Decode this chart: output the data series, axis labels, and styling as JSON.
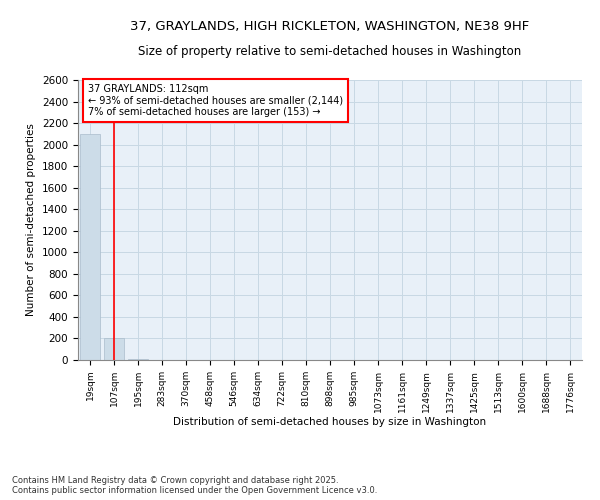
{
  "title": "37, GRAYLANDS, HIGH RICKLETON, WASHINGTON, NE38 9HF",
  "subtitle": "Size of property relative to semi-detached houses in Washington",
  "xlabel": "Distribution of semi-detached houses by size in Washington",
  "ylabel": "Number of semi-detached properties",
  "footnote1": "Contains HM Land Registry data © Crown copyright and database right 2025.",
  "footnote2": "Contains public sector information licensed under the Open Government Licence v3.0.",
  "categories": [
    "19sqm",
    "107sqm",
    "195sqm",
    "283sqm",
    "370sqm",
    "458sqm",
    "546sqm",
    "634sqm",
    "722sqm",
    "810sqm",
    "898sqm",
    "985sqm",
    "1073sqm",
    "1161sqm",
    "1249sqm",
    "1337sqm",
    "1425sqm",
    "1513sqm",
    "1600sqm",
    "1688sqm",
    "1776sqm"
  ],
  "values": [
    2100,
    200,
    10,
    2,
    1,
    0,
    0,
    0,
    0,
    0,
    0,
    0,
    0,
    0,
    0,
    0,
    0,
    0,
    0,
    0,
    0
  ],
  "bar_color": "#ccdce8",
  "bar_edge_color": "#aabccc",
  "ylim": [
    0,
    2600
  ],
  "yticks": [
    0,
    200,
    400,
    600,
    800,
    1000,
    1200,
    1400,
    1600,
    1800,
    2000,
    2200,
    2400,
    2600
  ],
  "red_line_x": 1.0,
  "annotation_title": "37 GRAYLANDS: 112sqm",
  "annotation_line1": "← 93% of semi-detached houses are smaller (2,144)",
  "annotation_line2": "7% of semi-detached houses are larger (153) →",
  "grid_color": "#c8d8e4",
  "background_color": "#e8f0f8"
}
